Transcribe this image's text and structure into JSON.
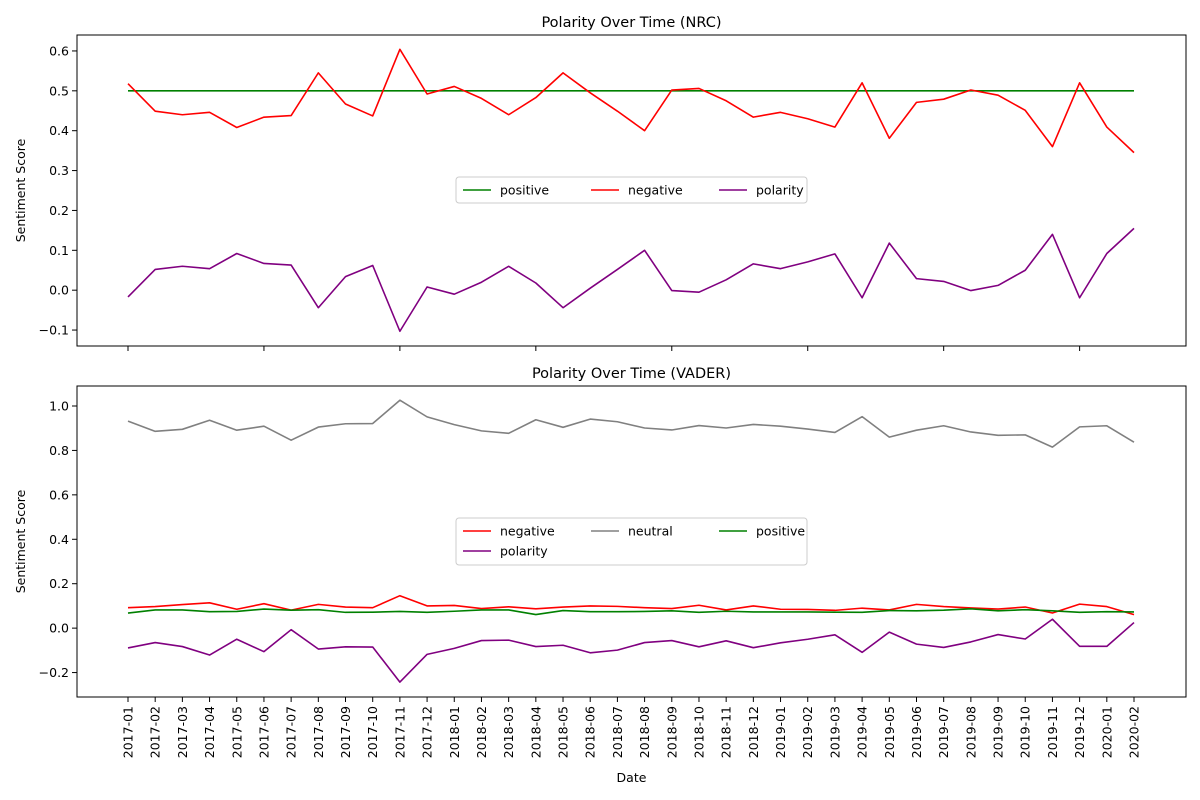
{
  "chart_data": [
    {
      "type": "line",
      "title": "Polarity Over Time (NRC)",
      "xlabel": "",
      "ylabel": "Sentiment Score",
      "ylim": [
        -0.14,
        0.64
      ],
      "yticks": [
        -0.1,
        0.0,
        0.1,
        0.2,
        0.3,
        0.4,
        0.5,
        0.6
      ],
      "ytick_labels": [
        "−0.1",
        "0.0",
        "0.1",
        "0.2",
        "0.3",
        "0.4",
        "0.5",
        "0.6"
      ],
      "grid": false,
      "legend": {
        "placement": "center",
        "columns": 3
      },
      "x": [
        "2017-01",
        "2017-02",
        "2017-03",
        "2017-04",
        "2017-05",
        "2017-06",
        "2017-07",
        "2017-08",
        "2017-09",
        "2017-10",
        "2017-11",
        "2017-12",
        "2018-01",
        "2018-02",
        "2018-03",
        "2018-04",
        "2018-05",
        "2018-06",
        "2018-07",
        "2018-08",
        "2018-09",
        "2018-10",
        "2018-11",
        "2018-12",
        "2019-01",
        "2019-02",
        "2019-03",
        "2019-04",
        "2019-05",
        "2019-06",
        "2019-07",
        "2019-08",
        "2019-09",
        "2019-10",
        "2019-11",
        "2019-12",
        "2020-01",
        "2020-02"
      ],
      "series": [
        {
          "name": "positive",
          "color": "#008000",
          "values": [
            0.5,
            0.5,
            0.5,
            0.5,
            0.5,
            0.5,
            0.5,
            0.5,
            0.5,
            0.5,
            0.5,
            0.5,
            0.5,
            0.5,
            0.5,
            0.5,
            0.5,
            0.5,
            0.5,
            0.5,
            0.5,
            0.5,
            0.5,
            0.5,
            0.5,
            0.5,
            0.5,
            0.5,
            0.5,
            0.5,
            0.5,
            0.5,
            0.5,
            0.5,
            0.5,
            0.5,
            0.5,
            0.5
          ]
        },
        {
          "name": "negative",
          "color": "#ff0000",
          "values": [
            0.518,
            0.449,
            0.44,
            0.446,
            0.408,
            0.434,
            0.438,
            0.545,
            0.467,
            0.437,
            0.604,
            0.492,
            0.511,
            0.481,
            0.44,
            0.483,
            0.545,
            0.495,
            0.449,
            0.4,
            0.502,
            0.506,
            0.475,
            0.434,
            0.446,
            0.43,
            0.409,
            0.52,
            0.381,
            0.471,
            0.479,
            0.502,
            0.489,
            0.451,
            0.36,
            0.52,
            0.409,
            0.345
          ]
        },
        {
          "name": "polarity",
          "color": "#800080",
          "values": [
            -0.017,
            0.052,
            0.06,
            0.054,
            0.092,
            0.067,
            0.063,
            -0.044,
            0.034,
            0.062,
            -0.103,
            0.008,
            -0.01,
            0.02,
            0.06,
            0.018,
            -0.044,
            0.005,
            0.052,
            0.1,
            -0.001,
            -0.005,
            0.026,
            0.066,
            0.054,
            0.071,
            0.091,
            -0.019,
            0.118,
            0.029,
            0.022,
            -0.001,
            0.012,
            0.05,
            0.14,
            -0.019,
            0.092,
            0.155
          ]
        }
      ]
    },
    {
      "type": "line",
      "title": "Polarity Over Time (VADER)",
      "xlabel": "Date",
      "ylabel": "Sentiment Score",
      "ylim": [
        -0.31,
        1.09
      ],
      "yticks": [
        -0.2,
        0.0,
        0.2,
        0.4,
        0.6,
        0.8,
        1.0
      ],
      "ytick_labels": [
        "−0.2",
        "0.0",
        "0.2",
        "0.4",
        "0.6",
        "0.8",
        "1.0"
      ],
      "grid": false,
      "legend": {
        "placement": "center",
        "columns": 3
      },
      "x": [
        "2017-01",
        "2017-02",
        "2017-03",
        "2017-04",
        "2017-05",
        "2017-06",
        "2017-07",
        "2017-08",
        "2017-09",
        "2017-10",
        "2017-11",
        "2017-12",
        "2018-01",
        "2018-02",
        "2018-03",
        "2018-04",
        "2018-05",
        "2018-06",
        "2018-07",
        "2018-08",
        "2018-09",
        "2018-10",
        "2018-11",
        "2018-12",
        "2019-01",
        "2019-02",
        "2019-03",
        "2019-04",
        "2019-05",
        "2019-06",
        "2019-07",
        "2019-08",
        "2019-09",
        "2019-10",
        "2019-11",
        "2019-12",
        "2020-01",
        "2020-02"
      ],
      "series": [
        {
          "name": "negative",
          "color": "#ff0000",
          "values": [
            0.092,
            0.097,
            0.106,
            0.114,
            0.085,
            0.11,
            0.081,
            0.107,
            0.095,
            0.092,
            0.146,
            0.1,
            0.102,
            0.088,
            0.096,
            0.087,
            0.095,
            0.1,
            0.098,
            0.092,
            0.088,
            0.103,
            0.082,
            0.1,
            0.085,
            0.084,
            0.08,
            0.09,
            0.082,
            0.107,
            0.097,
            0.091,
            0.086,
            0.095,
            0.068,
            0.108,
            0.097,
            0.061
          ]
        },
        {
          "name": "neutral",
          "color": "#808080",
          "values": [
            0.932,
            0.886,
            0.895,
            0.936,
            0.891,
            0.909,
            0.846,
            0.905,
            0.92,
            0.921,
            1.026,
            0.951,
            0.916,
            0.888,
            0.877,
            0.938,
            0.904,
            0.941,
            0.929,
            0.901,
            0.892,
            0.912,
            0.901,
            0.917,
            0.909,
            0.896,
            0.881,
            0.952,
            0.86,
            0.891,
            0.911,
            0.883,
            0.868,
            0.87,
            0.815,
            0.906,
            0.911,
            0.837
          ]
        },
        {
          "name": "positive",
          "color": "#008000",
          "values": [
            0.068,
            0.082,
            0.082,
            0.074,
            0.075,
            0.086,
            0.081,
            0.083,
            0.071,
            0.072,
            0.075,
            0.071,
            0.076,
            0.082,
            0.082,
            0.061,
            0.079,
            0.074,
            0.074,
            0.075,
            0.078,
            0.071,
            0.076,
            0.073,
            0.073,
            0.073,
            0.072,
            0.071,
            0.079,
            0.078,
            0.081,
            0.087,
            0.078,
            0.083,
            0.078,
            0.071,
            0.074,
            0.073
          ]
        },
        {
          "name": "polarity",
          "color": "#800080",
          "values": [
            -0.089,
            -0.065,
            -0.083,
            -0.121,
            -0.05,
            -0.106,
            -0.007,
            -0.094,
            -0.084,
            -0.085,
            -0.243,
            -0.118,
            -0.091,
            -0.056,
            -0.054,
            -0.083,
            -0.077,
            -0.111,
            -0.099,
            -0.065,
            -0.056,
            -0.084,
            -0.057,
            -0.088,
            -0.066,
            -0.05,
            -0.03,
            -0.109,
            -0.018,
            -0.072,
            -0.087,
            -0.062,
            -0.029,
            -0.049,
            0.04,
            -0.082,
            -0.082,
            0.025
          ]
        }
      ]
    }
  ]
}
